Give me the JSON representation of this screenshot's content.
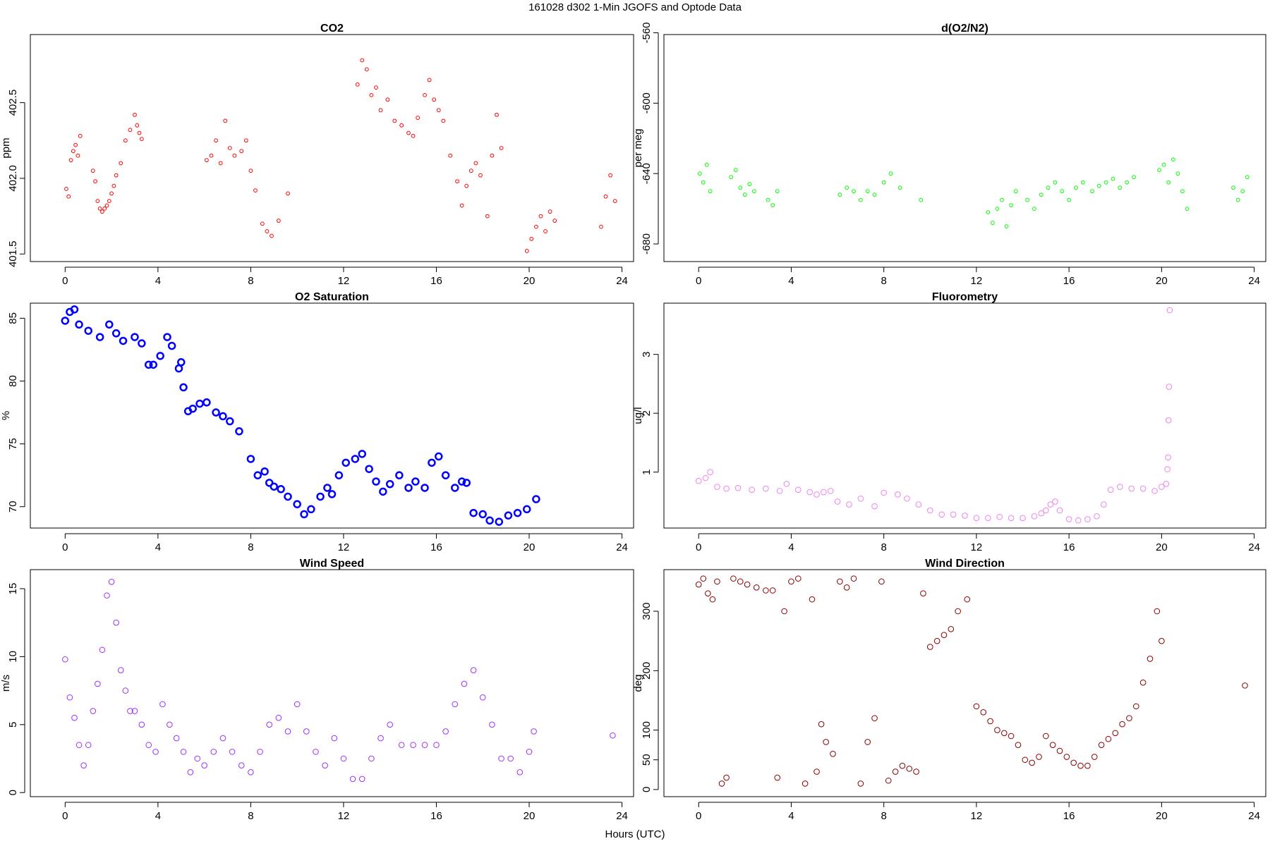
{
  "figure": {
    "title": "161028   d302   1-Min  JGOFS and Optode Data",
    "xlabel": "Hours (UTC)"
  },
  "chart_data": [
    {
      "type": "scatter",
      "title": "CO2",
      "ylabel": "ppm",
      "xlim": [
        -1.5,
        24.5
      ],
      "ylim": [
        401.45,
        402.95
      ],
      "xticks": [
        0,
        4,
        8,
        12,
        16,
        20,
        24
      ],
      "yticks": [
        401.5,
        402.0,
        402.5
      ],
      "ytick_labels": [
        "401.5",
        "402.0",
        "402.5"
      ],
      "color": "#ff0000",
      "series": [
        {
          "x": [
            0.05,
            0.15,
            0.25,
            0.35,
            0.45,
            0.55,
            0.65,
            1.2,
            1.3,
            1.4,
            1.5,
            1.6,
            1.7,
            1.8,
            1.9,
            2.0,
            2.1,
            2.2,
            2.4,
            2.6,
            2.8,
            3.0,
            3.1,
            3.2,
            3.3,
            6.1,
            6.3,
            6.5,
            6.7,
            6.9,
            7.1,
            7.3,
            7.6,
            7.8,
            8.0,
            8.2,
            8.5,
            8.7,
            8.9,
            9.2,
            9.6,
            12.6,
            12.8,
            13.0,
            13.2,
            13.4,
            13.6,
            13.9,
            14.2,
            14.5,
            14.8,
            15.0,
            15.2,
            15.5,
            15.7,
            15.9,
            16.1,
            16.3,
            16.6,
            16.9,
            17.1,
            17.3,
            17.5,
            17.7,
            17.9,
            18.2,
            18.4,
            18.6,
            18.8,
            19.9,
            20.1,
            20.3,
            20.5,
            20.7,
            20.9,
            21.1,
            23.1,
            23.3,
            23.5,
            23.7
          ],
          "y": [
            401.93,
            401.88,
            402.12,
            402.18,
            402.22,
            402.15,
            402.28,
            402.05,
            401.98,
            401.85,
            401.8,
            401.78,
            401.8,
            401.82,
            401.85,
            401.9,
            401.95,
            402.02,
            402.1,
            402.25,
            402.32,
            402.42,
            402.35,
            402.3,
            402.26,
            402.12,
            402.15,
            402.25,
            402.1,
            402.38,
            402.2,
            402.15,
            402.18,
            402.25,
            402.05,
            401.92,
            401.7,
            401.65,
            401.62,
            401.72,
            401.9,
            402.62,
            402.78,
            402.72,
            402.55,
            402.6,
            402.45,
            402.52,
            402.38,
            402.35,
            402.3,
            402.28,
            402.4,
            402.55,
            402.65,
            402.52,
            402.45,
            402.38,
            402.15,
            401.98,
            401.82,
            401.95,
            402.05,
            402.1,
            402.02,
            401.75,
            402.15,
            402.42,
            402.2,
            401.52,
            401.6,
            401.68,
            401.75,
            401.65,
            401.78,
            401.72,
            401.68,
            401.88,
            402.02,
            401.85
          ]
        }
      ]
    },
    {
      "type": "scatter",
      "title": "d(O2/N2)",
      "ylabel": "per meg",
      "xlim": [
        -1.5,
        24.5
      ],
      "ylim": [
        -690,
        -561
      ],
      "xticks": [
        0,
        4,
        8,
        12,
        16,
        20,
        24
      ],
      "yticks": [
        -680,
        -640,
        -600,
        -560
      ],
      "ytick_labels": [
        "-680",
        "-640",
        "-600",
        "-560"
      ],
      "color": "#00ff00",
      "series": [
        {
          "x": [
            0.05,
            0.2,
            0.35,
            0.5,
            1.4,
            1.6,
            1.8,
            2.0,
            2.2,
            2.4,
            3.0,
            3.2,
            3.4,
            6.1,
            6.4,
            6.7,
            7.0,
            7.3,
            7.6,
            8.0,
            8.3,
            8.7,
            9.6,
            12.5,
            12.7,
            12.9,
            13.1,
            13.3,
            13.5,
            13.7,
            14.2,
            14.5,
            14.8,
            15.1,
            15.4,
            15.7,
            16.0,
            16.3,
            16.6,
            17.0,
            17.3,
            17.6,
            17.9,
            18.2,
            18.5,
            18.8,
            19.9,
            20.1,
            20.3,
            20.5,
            20.7,
            20.9,
            21.1,
            23.1,
            23.3,
            23.5,
            23.7
          ],
          "y": [
            -640,
            -645,
            -635,
            -650,
            -642,
            -638,
            -648,
            -652,
            -646,
            -650,
            -655,
            -658,
            -650,
            -652,
            -648,
            -650,
            -655,
            -650,
            -652,
            -645,
            -640,
            -648,
            -655,
            -662,
            -668,
            -660,
            -655,
            -670,
            -658,
            -650,
            -655,
            -660,
            -652,
            -648,
            -645,
            -650,
            -655,
            -648,
            -645,
            -650,
            -647,
            -645,
            -643,
            -648,
            -645,
            -642,
            -638,
            -635,
            -645,
            -632,
            -640,
            -650,
            -660,
            -648,
            -655,
            -650,
            -642
          ]
        }
      ]
    },
    {
      "type": "scatter",
      "title": "O2 Saturation",
      "ylabel": "%",
      "xlim": [
        -1.5,
        24.5
      ],
      "ylim": [
        68.3,
        86.2
      ],
      "xticks": [
        0,
        4,
        8,
        12,
        16,
        20,
        24
      ],
      "yticks": [
        70,
        75,
        80,
        85
      ],
      "ytick_labels": [
        "70",
        "75",
        "80",
        "85"
      ],
      "color": "#0000ff",
      "series": [
        {
          "x": [
            0.0,
            0.2,
            0.4,
            0.6,
            1.0,
            1.5,
            1.9,
            2.2,
            2.5,
            3.0,
            3.3,
            3.6,
            3.8,
            4.1,
            4.4,
            4.6,
            4.9,
            5.0,
            5.1,
            5.3,
            5.5,
            5.8,
            6.1,
            6.5,
            6.8,
            7.1,
            7.5,
            8.0,
            8.3,
            8.6,
            8.8,
            9.0,
            9.3,
            9.6,
            10.0,
            10.3,
            10.6,
            11.0,
            11.3,
            11.5,
            11.8,
            12.1,
            12.5,
            12.8,
            13.1,
            13.4,
            13.7,
            14.0,
            14.4,
            14.8,
            15.1,
            15.5,
            15.8,
            16.1,
            16.4,
            16.8,
            17.1,
            17.3,
            17.6,
            18.0,
            18.3,
            18.7,
            19.1,
            19.5,
            19.9,
            20.3
          ],
          "y": [
            84.8,
            85.5,
            85.7,
            84.5,
            84.0,
            83.5,
            84.5,
            83.8,
            83.2,
            83.5,
            83.0,
            81.3,
            81.3,
            82.0,
            83.5,
            82.8,
            81.0,
            81.5,
            79.5,
            77.6,
            77.8,
            78.2,
            78.3,
            77.5,
            77.2,
            76.8,
            76.0,
            73.8,
            72.5,
            72.8,
            71.9,
            71.6,
            71.4,
            70.8,
            70.2,
            69.4,
            69.8,
            70.8,
            71.5,
            71.0,
            72.5,
            73.5,
            73.8,
            74.2,
            73.0,
            72.0,
            71.2,
            71.8,
            72.5,
            71.5,
            72.0,
            71.5,
            73.5,
            74.0,
            72.5,
            71.5,
            72.0,
            71.9,
            69.5,
            69.4,
            68.9,
            68.8,
            69.3,
            69.5,
            69.8,
            70.6
          ]
        }
      ]
    },
    {
      "type": "scatter",
      "title": "Fluorometry",
      "ylabel": "ug/l",
      "xlim": [
        -1.5,
        24.5
      ],
      "ylim": [
        0.05,
        3.87
      ],
      "xticks": [
        0,
        4,
        8,
        12,
        16,
        20,
        24
      ],
      "yticks": [
        1,
        2,
        3
      ],
      "ytick_labels": [
        "1",
        "2",
        "3"
      ],
      "color": "#ee82ee",
      "series": [
        {
          "x": [
            0.0,
            0.3,
            0.5,
            0.8,
            1.2,
            1.7,
            2.3,
            2.9,
            3.5,
            3.8,
            4.3,
            4.8,
            5.1,
            5.4,
            5.7,
            6.0,
            6.5,
            7.0,
            7.6,
            8.0,
            8.6,
            9.0,
            9.5,
            10.0,
            10.5,
            11.0,
            11.5,
            12.0,
            12.5,
            13.0,
            13.5,
            14.0,
            14.5,
            14.8,
            15.0,
            15.2,
            15.4,
            15.6,
            16.0,
            16.4,
            16.8,
            17.2,
            17.5,
            17.8,
            18.2,
            18.7,
            19.2,
            19.7,
            20.0,
            20.2,
            20.25,
            20.28,
            20.3,
            20.32,
            20.35
          ],
          "y": [
            0.85,
            0.9,
            1.0,
            0.75,
            0.72,
            0.73,
            0.7,
            0.72,
            0.68,
            0.8,
            0.7,
            0.66,
            0.62,
            0.66,
            0.68,
            0.5,
            0.45,
            0.55,
            0.42,
            0.65,
            0.62,
            0.55,
            0.45,
            0.35,
            0.28,
            0.28,
            0.26,
            0.22,
            0.22,
            0.24,
            0.22,
            0.22,
            0.25,
            0.3,
            0.35,
            0.45,
            0.5,
            0.35,
            0.2,
            0.18,
            0.2,
            0.25,
            0.45,
            0.7,
            0.75,
            0.72,
            0.72,
            0.68,
            0.75,
            0.8,
            1.05,
            1.25,
            1.88,
            2.45,
            3.75
          ]
        }
      ]
    },
    {
      "type": "scatter",
      "title": "Wind Speed",
      "ylabel": "m/s",
      "xlim": [
        -1.5,
        24.5
      ],
      "ylim": [
        -0.3,
        16.4
      ],
      "xticks": [
        0,
        4,
        8,
        12,
        16,
        20,
        24
      ],
      "yticks": [
        0,
        5,
        10,
        15
      ],
      "ytick_labels": [
        "0",
        "5",
        "10",
        "15"
      ],
      "color": "#9b30ff",
      "series": [
        {
          "x": [
            0.0,
            0.2,
            0.4,
            0.6,
            0.8,
            1.0,
            1.2,
            1.4,
            1.6,
            1.8,
            2.0,
            2.2,
            2.4,
            2.6,
            2.8,
            3.0,
            3.3,
            3.6,
            3.9,
            4.2,
            4.5,
            4.8,
            5.1,
            5.4,
            5.7,
            6.0,
            6.4,
            6.8,
            7.2,
            7.6,
            8.0,
            8.4,
            8.8,
            9.2,
            9.6,
            10.0,
            10.4,
            10.8,
            11.2,
            11.6,
            12.0,
            12.4,
            12.8,
            13.2,
            13.6,
            14.0,
            14.5,
            15.0,
            15.5,
            16.0,
            16.4,
            16.8,
            17.2,
            17.6,
            18.0,
            18.4,
            18.8,
            19.2,
            19.6,
            20.0,
            20.2,
            23.6
          ],
          "y": [
            9.8,
            7.0,
            5.5,
            3.5,
            2.0,
            3.5,
            6.0,
            8.0,
            10.5,
            14.5,
            15.5,
            12.5,
            9.0,
            7.5,
            6.0,
            6.0,
            5.0,
            3.5,
            3.0,
            6.5,
            5.0,
            4.0,
            3.0,
            1.5,
            2.5,
            2.0,
            3.0,
            4.0,
            3.0,
            2.0,
            1.5,
            3.0,
            5.0,
            5.5,
            4.5,
            6.5,
            4.5,
            3.0,
            2.0,
            4.0,
            2.5,
            1.0,
            1.0,
            2.5,
            4.0,
            5.0,
            3.5,
            3.5,
            3.5,
            3.5,
            4.5,
            6.5,
            8.0,
            9.0,
            7.0,
            5.0,
            2.5,
            2.5,
            1.5,
            3.0,
            4.5,
            4.2
          ]
        }
      ]
    },
    {
      "type": "scatter",
      "title": "Wind Direction",
      "ylabel": "deg",
      "xlim": [
        -1.5,
        24.5
      ],
      "ylim": [
        -12,
        370
      ],
      "xticks": [
        0,
        4,
        8,
        12,
        16,
        20,
        24
      ],
      "yticks": [
        0,
        50,
        100,
        200,
        300
      ],
      "ytick_labels": [
        "0",
        "50",
        "100",
        "200",
        "300"
      ],
      "color": "#8b0000",
      "series": [
        {
          "x": [
            0.0,
            0.2,
            0.4,
            0.6,
            0.8,
            1.0,
            1.2,
            1.5,
            1.8,
            2.1,
            2.5,
            2.9,
            3.2,
            3.4,
            3.7,
            4.0,
            4.3,
            4.6,
            4.9,
            5.1,
            5.3,
            5.5,
            5.8,
            6.1,
            6.4,
            6.7,
            7.0,
            7.3,
            7.6,
            7.9,
            8.2,
            8.5,
            8.8,
            9.1,
            9.4,
            9.7,
            10.0,
            10.3,
            10.6,
            10.9,
            11.2,
            11.6,
            12.0,
            12.3,
            12.6,
            12.9,
            13.2,
            13.5,
            13.8,
            14.1,
            14.4,
            14.7,
            15.0,
            15.3,
            15.6,
            15.9,
            16.2,
            16.5,
            16.8,
            17.1,
            17.4,
            17.7,
            18.0,
            18.3,
            18.6,
            18.9,
            19.2,
            19.5,
            19.8,
            20.0,
            23.6
          ],
          "y": [
            345,
            355,
            330,
            320,
            350,
            10,
            20,
            355,
            350,
            345,
            340,
            335,
            335,
            20,
            300,
            350,
            355,
            10,
            320,
            30,
            110,
            80,
            60,
            350,
            340,
            355,
            10,
            80,
            120,
            350,
            15,
            30,
            40,
            35,
            30,
            330,
            240,
            250,
            260,
            270,
            300,
            320,
            140,
            130,
            115,
            100,
            95,
            90,
            75,
            50,
            45,
            55,
            90,
            75,
            65,
            55,
            45,
            40,
            40,
            55,
            75,
            85,
            95,
            110,
            120,
            140,
            180,
            220,
            300,
            250,
            175
          ]
        }
      ]
    }
  ]
}
